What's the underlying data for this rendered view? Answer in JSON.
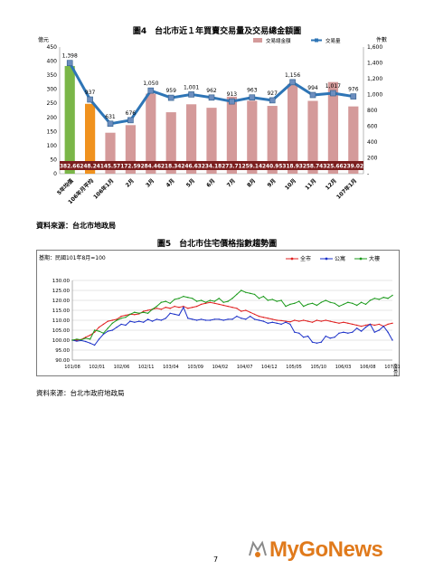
{
  "page": {
    "number": "7",
    "logo": "MyGoNews"
  },
  "chart_data": [
    {
      "type": "bar+line",
      "title": "圖4　台北市近１年買賣交易量及交易總金額圖",
      "left_unit": "億元",
      "right_unit": "件數",
      "legend": {
        "bar": "交易總金額",
        "line": "交易量"
      },
      "categories": [
        "5年均值",
        "106年月平均",
        "106年1月",
        "2月",
        "3月",
        "4月",
        "5月",
        "6月",
        "7月",
        "8月",
        "9月",
        "10月",
        "11月",
        "12月",
        "107年1月"
      ],
      "bar_values": [
        382.66,
        248.24,
        145.57,
        172.59,
        284.46,
        218.34,
        246.63,
        234.18,
        273.71,
        259.14,
        240.95,
        318.93,
        258.74,
        325.66,
        239.02
      ],
      "bar_labels": [
        "382.66",
        "248.24",
        "145.57",
        "172.59",
        "284.46",
        "218.34",
        "246.63",
        "234.18",
        "273.71",
        "259.14",
        "240.95",
        "318.93",
        "258.74",
        "325.66",
        "239.02"
      ],
      "bar_colors": [
        "#7ab648",
        "#f0921e",
        "#d49a9a",
        "#d49a9a",
        "#d49a9a",
        "#d49a9a",
        "#d49a9a",
        "#d49a9a",
        "#d49a9a",
        "#d49a9a",
        "#d49a9a",
        "#d49a9a",
        "#d49a9a",
        "#d49a9a",
        "#d49a9a"
      ],
      "line_values": [
        1398,
        937,
        631,
        676,
        1050,
        959,
        1001,
        962,
        913,
        963,
        927,
        1156,
        994,
        1017,
        976
      ],
      "line_labels": [
        "1,398",
        "937",
        "631",
        "676",
        "1,050",
        "959",
        "1,001",
        "962",
        "913",
        "963",
        "927",
        "1,156",
        "994",
        "1,017",
        "976"
      ],
      "left_ticks": [
        "0",
        "50",
        "100",
        "150",
        "200",
        "250",
        "300",
        "350",
        "400",
        "450"
      ],
      "right_ticks": [
        "-",
        "200",
        "400",
        "600",
        "800",
        "1,000",
        "1,200",
        "1,400",
        "1,600"
      ],
      "left_range": [
        0,
        450
      ],
      "right_range": [
        0,
        1600
      ],
      "line_color": "#2e75b6"
    },
    {
      "type": "line",
      "title": "圖5　台北市住宅價格指數趨勢圖",
      "note": "基期：民國101年8月=100",
      "legend": [
        "全市",
        "公寓",
        "大樓"
      ],
      "colors": [
        "#e02020",
        "#1a2fc8",
        "#1b9a1b"
      ],
      "y_ticks": [
        "90.00",
        "95.00",
        "100.00",
        "105.00",
        "110.00",
        "115.00",
        "120.00",
        "125.00",
        "130.00"
      ],
      "y_range": [
        90,
        130
      ],
      "x_ticks": [
        "101/08",
        "102/01",
        "102/06",
        "102/11",
        "103/04",
        "103/09",
        "104/02",
        "104/07",
        "104/12",
        "105/05",
        "105/10",
        "106/03",
        "106/08",
        "107/01"
      ],
      "x_unit": "交易日期",
      "series": [
        {
          "name": "全市",
          "values": [
            100,
            100,
            100.3,
            101.5,
            102.5,
            104,
            106.5,
            108,
            109.5,
            110,
            110.5,
            112,
            112.5,
            113,
            112.8,
            113.2,
            114.5,
            115,
            115.5,
            116,
            115.5,
            116.5,
            116,
            117,
            116.5,
            117,
            116,
            116.5,
            117,
            118,
            118.5,
            119,
            118.5,
            118,
            117.5,
            117,
            116.5,
            116,
            114.5,
            115,
            114,
            113,
            112,
            111.5,
            111,
            110.5,
            110,
            109.8,
            109.5,
            109.2,
            110,
            109.5,
            110,
            109.5,
            109,
            110,
            109.5,
            110,
            109.5,
            109,
            108.5,
            109,
            108.5,
            108,
            107.5,
            107,
            107.5,
            108,
            107.5,
            108,
            107,
            108,
            108.5
          ]
        },
        {
          "name": "公寓",
          "values": [
            100,
            99.5,
            99.8,
            99.3,
            98.5,
            97.5,
            100.5,
            103,
            104.5,
            105,
            106.5,
            108,
            107.5,
            109.5,
            109,
            109.5,
            109,
            110.5,
            109.5,
            110.5,
            110,
            111,
            113.5,
            113,
            112.5,
            116.5,
            111,
            110.5,
            110,
            110.5,
            110,
            110,
            110.5,
            110.5,
            110,
            110.5,
            110.5,
            112,
            111,
            110.5,
            112,
            110.5,
            110,
            109.5,
            108.5,
            109,
            108.5,
            108,
            109,
            108,
            104,
            103.5,
            101.5,
            102,
            99,
            98.5,
            99,
            102,
            101,
            101.5,
            103.5,
            104,
            103.5,
            104,
            106,
            104.5,
            106.5,
            108,
            104,
            105,
            107,
            104,
            100
          ]
        },
        {
          "name": "大樓",
          "values": [
            100,
            100.5,
            100.2,
            101,
            100.5,
            105,
            104.5,
            103.5,
            106,
            108.5,
            110,
            111,
            111.5,
            113,
            114,
            113.5,
            114,
            113.5,
            115.5,
            117,
            119,
            119.5,
            118.5,
            120.5,
            121,
            122,
            121.5,
            121,
            119.5,
            120,
            119,
            120,
            119.5,
            121,
            119,
            119.5,
            121,
            123,
            125,
            124,
            123.5,
            123,
            121,
            122,
            120,
            120.5,
            119.5,
            120,
            117,
            118,
            118.5,
            119.5,
            117,
            118,
            118.5,
            117.5,
            119,
            120,
            119,
            118.5,
            117,
            118,
            119,
            118.5,
            117.5,
            119,
            118,
            120,
            121,
            120.5,
            121.5,
            121,
            122.5
          ]
        }
      ]
    }
  ],
  "sources": {
    "fig4": "資料來源：台北市地政局",
    "fig5": "資料來源：台北市政府地政局"
  }
}
